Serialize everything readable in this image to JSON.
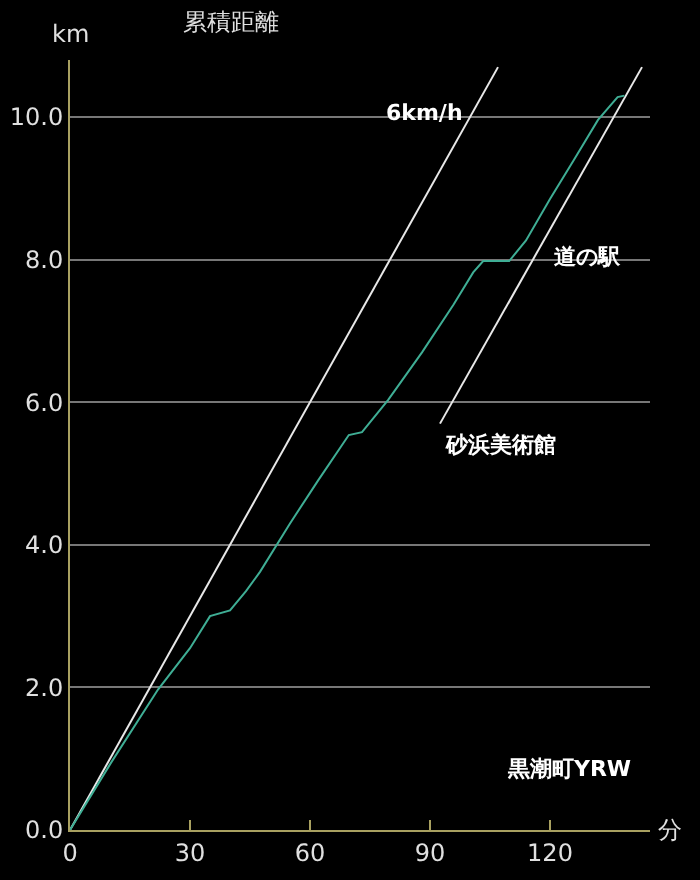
{
  "chart_data": {
    "type": "line",
    "title": "累積距離",
    "xlabel": "分",
    "ylabel": "km",
    "xlim": [
      0,
      145
    ],
    "ylim": [
      0,
      10.8
    ],
    "xticks": [
      0,
      30,
      60,
      90,
      120
    ],
    "yticks": [
      {
        "value": 0,
        "label": "0.0"
      },
      {
        "value": 2,
        "label": "2.0"
      },
      {
        "value": 4,
        "label": "4.0"
      },
      {
        "value": 6,
        "label": "6.0"
      },
      {
        "value": 8,
        "label": "8.0"
      },
      {
        "value": 10,
        "label": "10.0"
      }
    ],
    "grid": "y",
    "line_style": "solid",
    "marker": "none",
    "series": [
      {
        "color": "#e8e8e8",
        "x": [
          0,
          107
        ],
        "values": [
          0,
          10.7
        ]
      },
      {
        "color": "#e8e8e8",
        "x": [
          92.5,
          143
        ],
        "values": [
          5.7,
          10.7
        ]
      },
      {
        "color": "#3fae95",
        "x": [
          0,
          10,
          22,
          30,
          35,
          40,
          44,
          47.5,
          55,
          62,
          69.7,
          73,
          79.5,
          88,
          95.9,
          100.8,
          103.3,
          109.8,
          114,
          120,
          126,
          132,
          136.9,
          138.6
        ],
        "values": [
          0,
          0.92,
          1.97,
          2.55,
          3,
          3.08,
          3.35,
          3.62,
          4.3,
          4.9,
          5.54,
          5.58,
          6.03,
          6.7,
          7.37,
          7.82,
          7.98,
          7.98,
          8.27,
          8.85,
          9.4,
          9.96,
          10.28,
          10.3
        ]
      }
    ],
    "annotations": [
      "6km/h",
      "道の駅",
      "砂浜美術館",
      "黒潮町YRW"
    ]
  }
}
